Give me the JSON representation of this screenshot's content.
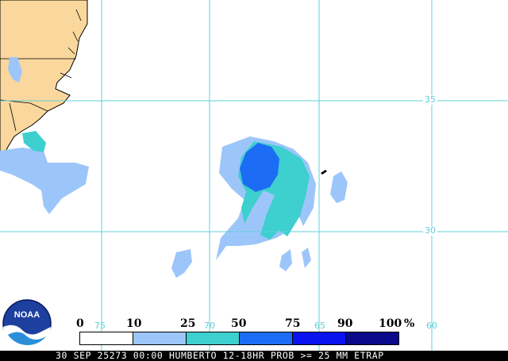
{
  "map": {
    "grid_latitudes": [
      {
        "value": "35"
      },
      {
        "value": "30"
      }
    ],
    "grid_longitudes": [
      {
        "value": "75"
      },
      {
        "value": "70"
      },
      {
        "value": "65"
      },
      {
        "value": "60"
      }
    ],
    "colors": {
      "land": "#fad79c",
      "ocean": "#ffffff",
      "grid": "#5fd0d8",
      "coast": "#000000"
    }
  },
  "legend": {
    "ticks": [
      "0",
      "10",
      "25",
      "50",
      "75",
      "90",
      "100",
      "%"
    ],
    "bins": [
      {
        "range": "0-10",
        "color": "#ffffff"
      },
      {
        "range": "10-25",
        "color": "#9cc6fa"
      },
      {
        "range": "25-50",
        "color": "#3ecfcf"
      },
      {
        "range": "50-75",
        "color": "#1c6cf5"
      },
      {
        "range": "75-90",
        "color": "#0a12f0"
      },
      {
        "range": "90-100",
        "color": "#0a0a8a"
      }
    ]
  },
  "caption": "30 SEP 25273 00:00 HUMBERTO 12-18HR PROB >= 25 MM ETRAP",
  "logo": {
    "text": "NOAA",
    "icon": "noaa-logo-icon"
  }
}
